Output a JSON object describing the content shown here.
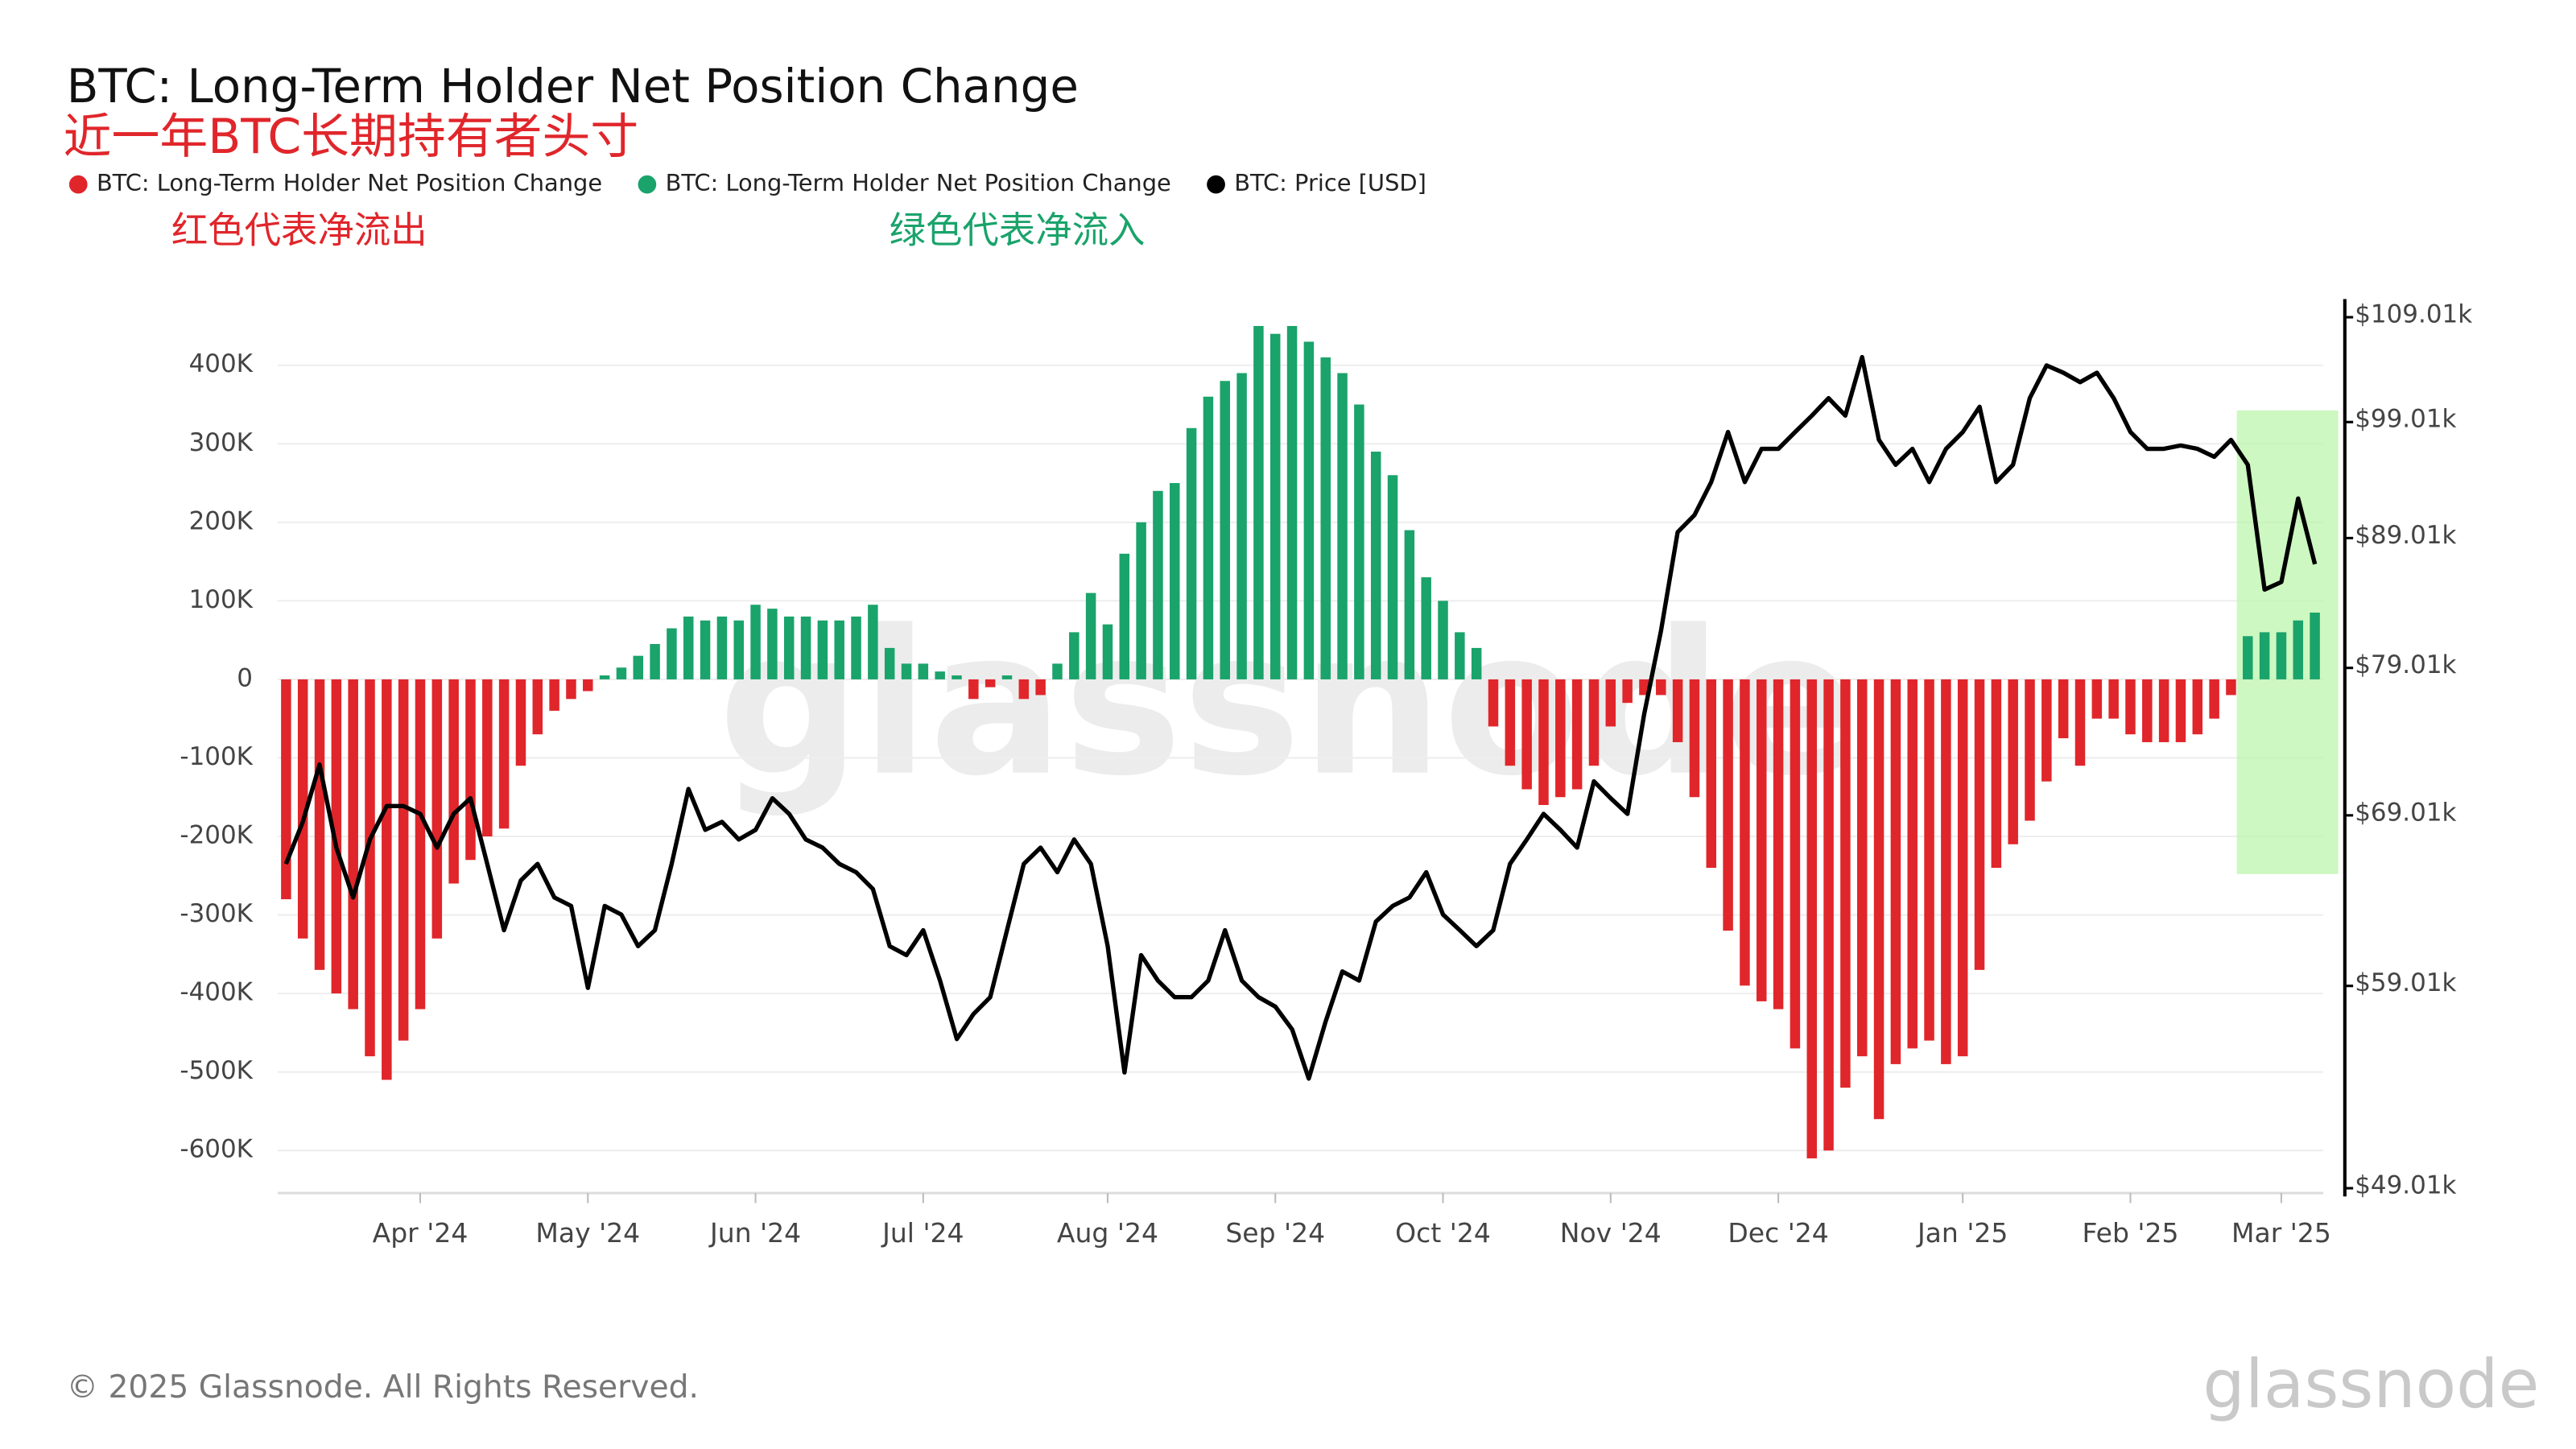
{
  "chart_data": {
    "type": "bar",
    "title": "BTC: Long-Term Holder Net Position Change",
    "subtitle": "近一年BTC长期持有者头寸",
    "annotations": [
      {
        "text": "红色代表净流出",
        "color": "#e0262b"
      },
      {
        "text": "绿色代表净流入",
        "color": "#1aa36b"
      }
    ],
    "watermark": "glassnode",
    "footer": "© 2025 Glassnode. All Rights Reserved.",
    "logo": "glassnode",
    "categories": [
      null,
      null,
      null,
      null,
      null,
      null,
      null,
      null,
      "Apr '24",
      null,
      null,
      null,
      null,
      null,
      null,
      null,
      null,
      null,
      "May '24",
      null,
      null,
      null,
      null,
      null,
      null,
      null,
      null,
      null,
      "Jun '24",
      null,
      null,
      null,
      null,
      null,
      null,
      null,
      null,
      null,
      "Jul '24",
      null,
      null,
      null,
      null,
      null,
      null,
      null,
      null,
      null,
      null,
      "Aug '24",
      null,
      null,
      null,
      null,
      null,
      null,
      null,
      null,
      null,
      "Sep '24",
      null,
      null,
      null,
      null,
      null,
      null,
      null,
      null,
      null,
      "Oct '24",
      null,
      null,
      null,
      null,
      null,
      null,
      null,
      null,
      null,
      "Nov '24",
      null,
      null,
      null,
      null,
      null,
      null,
      null,
      null,
      null,
      "Dec '24",
      null,
      null,
      null,
      null,
      null,
      null,
      null,
      null,
      null,
      null,
      "Jan '25",
      null,
      null,
      null,
      null,
      null,
      null,
      null,
      null,
      null,
      "Feb '25",
      null,
      null,
      null,
      null,
      null,
      null,
      null,
      null,
      "Mar '25",
      null,
      null
    ],
    "series": [
      {
        "name": "BTC: Long-Term Holder Net Position Change",
        "color": "#e0262b",
        "values": [
          -280000,
          -330000,
          -370000,
          -400000,
          -420000,
          -480000,
          -510000,
          -460000,
          -420000,
          -330000,
          -260000,
          -230000,
          -200000,
          -190000,
          -110000,
          -70000,
          -40000,
          -25000,
          -15000,
          null,
          null,
          null,
          null,
          null,
          null,
          null,
          null,
          null,
          null,
          null,
          null,
          null,
          null,
          null,
          null,
          null,
          null,
          null,
          null,
          null,
          null,
          -25000,
          -10000,
          null,
          -25000,
          -20000,
          null,
          null,
          null,
          null,
          null,
          null,
          null,
          null,
          null,
          null,
          null,
          null,
          null,
          null,
          null,
          null,
          null,
          null,
          null,
          null,
          null,
          null,
          null,
          null,
          null,
          null,
          -60000,
          -110000,
          -140000,
          -160000,
          -150000,
          -140000,
          -110000,
          -60000,
          -30000,
          -20000,
          -20000,
          -80000,
          -150000,
          -240000,
          -320000,
          -390000,
          -410000,
          -420000,
          -470000,
          -610000,
          -600000,
          -520000,
          -480000,
          -560000,
          -490000,
          -470000,
          -460000,
          -490000,
          -480000,
          -370000,
          -240000,
          -210000,
          -180000,
          -130000,
          -75000,
          -110000,
          -50000,
          -50000,
          -70000,
          -80000,
          -80000,
          -80000,
          -70000,
          -50000,
          -20000,
          null,
          null,
          null,
          null,
          null
        ]
      },
      {
        "name": "BTC: Long-Term Holder Net Position Change",
        "color": "#1aa36b",
        "values": [
          null,
          null,
          null,
          null,
          null,
          null,
          null,
          null,
          null,
          null,
          null,
          null,
          null,
          null,
          null,
          null,
          null,
          null,
          null,
          5000,
          15000,
          30000,
          45000,
          65000,
          80000,
          75000,
          80000,
          75000,
          95000,
          90000,
          80000,
          80000,
          75000,
          75000,
          80000,
          95000,
          40000,
          20000,
          20000,
          10000,
          5000,
          null,
          null,
          5000,
          null,
          null,
          20000,
          60000,
          110000,
          70000,
          160000,
          200000,
          240000,
          250000,
          320000,
          360000,
          380000,
          390000,
          450000,
          440000,
          450000,
          430000,
          410000,
          390000,
          350000,
          290000,
          260000,
          190000,
          130000,
          100000,
          60000,
          40000,
          null,
          null,
          null,
          null,
          null,
          null,
          null,
          null,
          null,
          null,
          null,
          null,
          null,
          null,
          null,
          null,
          null,
          null,
          null,
          null,
          null,
          null,
          null,
          null,
          null,
          null,
          null,
          null,
          null,
          null,
          null,
          null,
          null,
          null,
          null,
          null,
          null,
          null,
          null,
          null,
          null,
          null,
          null,
          null,
          null,
          55000,
          60000,
          60000,
          75000,
          85000
        ]
      },
      {
        "name": "BTC: Price [USD]",
        "color": "#000000",
        "type": "line",
        "axis": "y2",
        "values": [
          66000,
          68600,
          72300,
          67000,
          64000,
          67500,
          69600,
          69600,
          69100,
          67000,
          69100,
          70100,
          66000,
          62100,
          65000,
          66000,
          64000,
          63500,
          58900,
          63500,
          63000,
          61200,
          62100,
          66000,
          70700,
          68100,
          68600,
          67500,
          68100,
          70100,
          69100,
          67500,
          67000,
          66000,
          65500,
          64500,
          61200,
          60700,
          62100,
          59300,
          56200,
          57500,
          58400,
          62100,
          66000,
          67000,
          65500,
          67500,
          66000,
          61200,
          54500,
          60700,
          59300,
          58400,
          58400,
          59300,
          62100,
          59300,
          58400,
          57900,
          56700,
          54200,
          57100,
          59800,
          59300,
          62600,
          63500,
          64000,
          65500,
          63000,
          62100,
          61200,
          62100,
          66000,
          67500,
          69100,
          68100,
          67000,
          71200,
          70100,
          69100,
          75700,
          81700,
          89500,
          90900,
          93700,
          98100,
          93700,
          96600,
          96600,
          98100,
          99600,
          101200,
          99600,
          105100,
          97400,
          95200,
          96600,
          93700,
          96600,
          98100,
          100400,
          93700,
          95200,
          101200,
          104300,
          103600,
          102700,
          103600,
          101200,
          98100,
          96600,
          96600,
          96900,
          96600,
          95900,
          97400,
          95200,
          84900,
          85500,
          92300,
          86900
        ]
      }
    ],
    "ylim": [
      -650000,
      480000
    ],
    "yticks": [
      {
        "value": 400000,
        "label": "400K"
      },
      {
        "value": 300000,
        "label": "300K"
      },
      {
        "value": 200000,
        "label": "200K"
      },
      {
        "value": 100000,
        "label": "100K"
      },
      0,
      {
        "value": -100000,
        "label": "-100K"
      },
      {
        "value": -200000,
        "label": "-200K"
      },
      {
        "value": -300000,
        "label": "-300K"
      },
      {
        "value": -400000,
        "label": "-400K"
      },
      {
        "value": -500000,
        "label": "-500K"
      },
      {
        "value": -600000,
        "label": "-600K"
      }
    ],
    "y2lim": [
      48940,
      110500
    ],
    "y2_log": true,
    "y2ticks": [
      {
        "value": 109010,
        "label": "$109.01k"
      },
      {
        "value": 99010,
        "label": "$99.01k"
      },
      {
        "value": 89010,
        "label": "$89.01k"
      },
      {
        "value": 79010,
        "label": "$79.01k"
      },
      {
        "value": 69010,
        "label": "$69.01k"
      },
      {
        "value": 59010,
        "label": "$59.01k"
      },
      {
        "value": 49010,
        "label": "$49.01k"
      }
    ],
    "grid": true
  }
}
